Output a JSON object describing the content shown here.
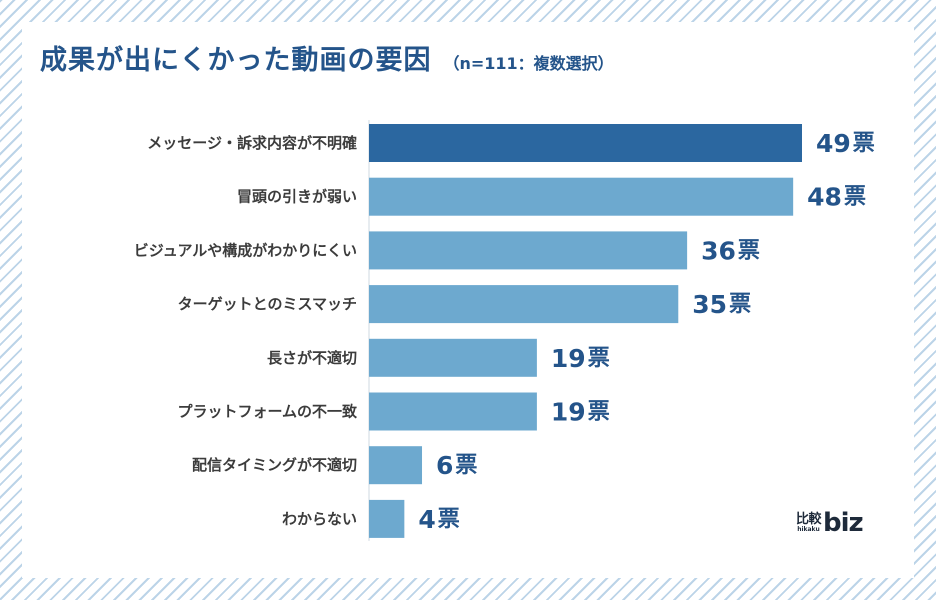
{
  "header": {
    "title": "成果が出にくかった動画の要因",
    "subtitle": "（n=111：複数選択）"
  },
  "logo": {
    "kanji": "比較",
    "roman": "hikaku",
    "biz": "biz"
  },
  "colors": {
    "highlight_bar": "#2b67a0",
    "bar": "#6da9cf",
    "title": "#24548a",
    "value_text": "#24548a",
    "label_text": "#3c3c3c"
  },
  "chart_data": {
    "type": "bar",
    "orientation": "horizontal",
    "title": "成果が出にくかった動画の要因",
    "subtitle": "（n=111：複数選択）",
    "unit": "票",
    "categories": [
      "メッセージ・訴求内容が不明確",
      "冒頭の引きが弱い",
      "ビジュアルや構成がわかりにくい",
      "ターゲットとのミスマッチ",
      "長さが不適切",
      "プラットフォームの不一致",
      "配信タイミングが不適切",
      "わからない"
    ],
    "values": [
      49,
      48,
      36,
      35,
      19,
      19,
      6,
      4
    ],
    "value_labels": [
      "49",
      "48",
      "36",
      "35",
      "19",
      "19",
      "6",
      "4"
    ],
    "highlight_index": 0,
    "xlim": [
      0,
      49
    ],
    "grid": false,
    "legend": "none"
  }
}
